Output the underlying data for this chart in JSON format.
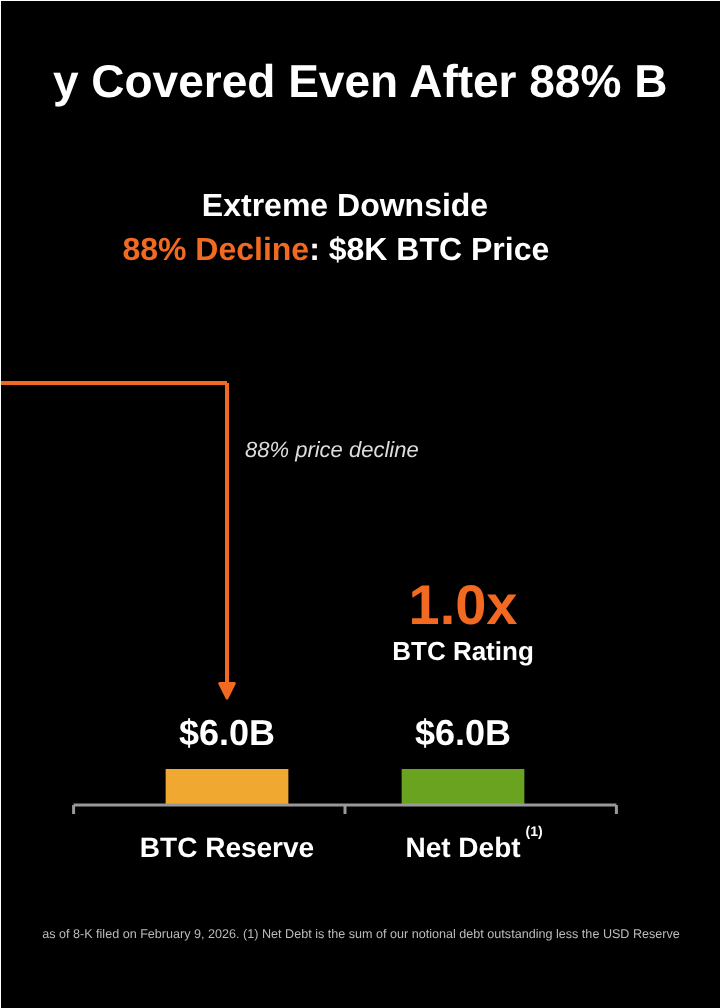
{
  "chart_data": {
    "type": "bar",
    "title": "y Covered Even After 88% B",
    "subtitle": "Extreme Downside\n88% Decline: $8K BTC Price",
    "categories": [
      "BTC Reserve",
      "Net Debt$^{(1)}$"
    ],
    "values": [
      6.0,
      6.0
    ],
    "colors": [
      "#f0a830",
      "#6aa320"
    ],
    "value_labels": [
      "$6.0B",
      "$6.0B"
    ],
    "annotations": [
      "88% price decline",
      "1.0x",
      "BTC Rating",
      "as of 8-K filed on February 9, 2026. (1) Net Debt is the sum of our notional debt outstanding less the USD Reserve"
    ],
    "grid": false
  }
}
